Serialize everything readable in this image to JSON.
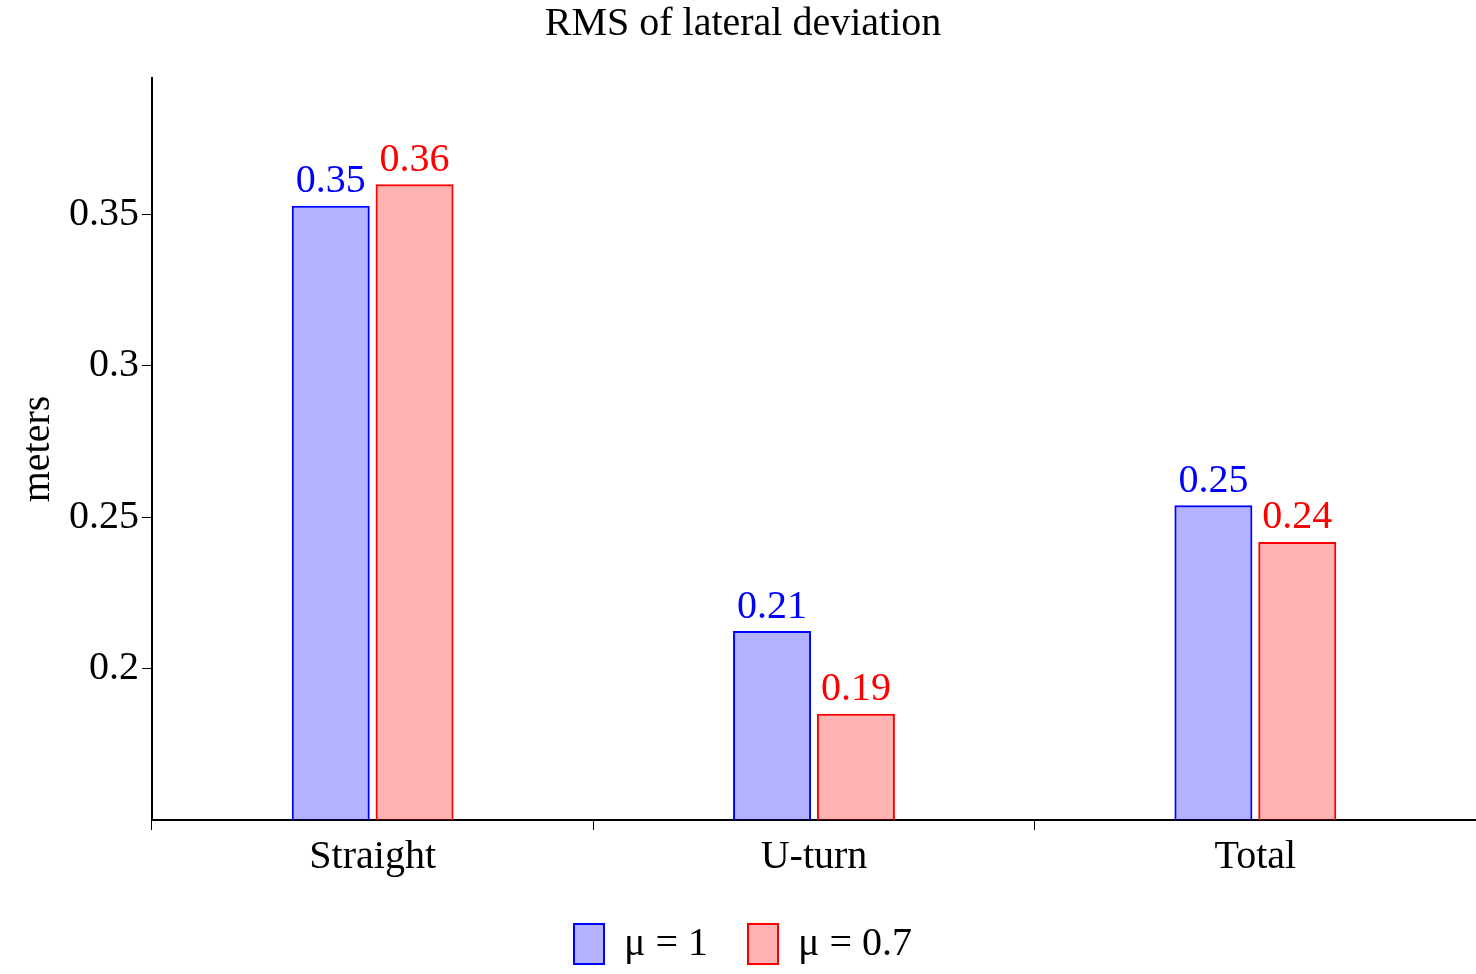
{
  "chart_data": {
    "type": "bar",
    "title": "RMS of lateral deviation",
    "ylabel": "meters",
    "categories": [
      "Straight",
      "U-turn",
      "Total"
    ],
    "series": [
      {
        "name": "μ = 1",
        "color": "#0000ff",
        "values": [
          0.3528,
          0.2124,
          0.2539
        ],
        "value_labels": [
          "0.35",
          "0.21",
          "0.25"
        ]
      },
      {
        "name": "μ = 0.7",
        "color": "#ff0000",
        "values": [
          0.3599,
          0.1851,
          0.2418
        ],
        "value_labels": [
          "0.36",
          "0.19",
          "0.24"
        ]
      }
    ],
    "ylim": [
      0.15,
      0.395
    ],
    "yticks": [
      0.2,
      0.25,
      0.3,
      0.35
    ],
    "grid": false,
    "legend": "bottom"
  }
}
